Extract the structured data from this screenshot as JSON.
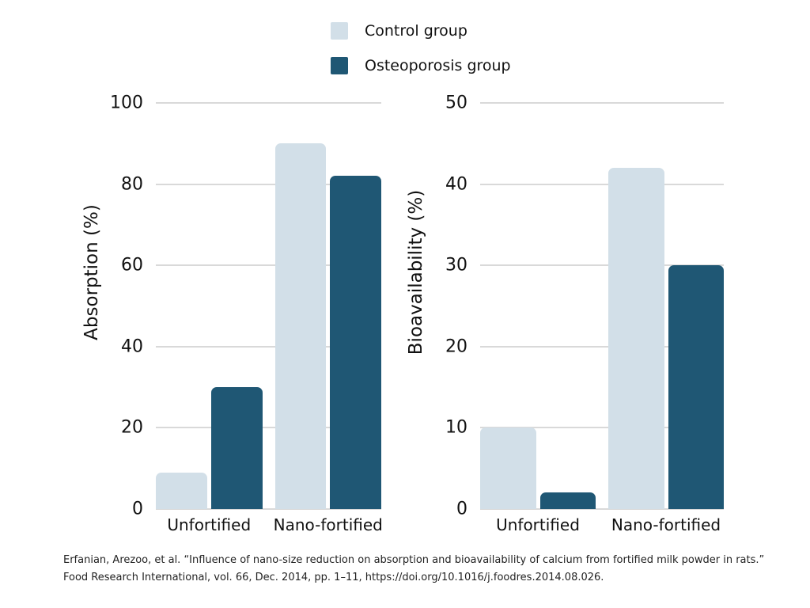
{
  "figure": {
    "legend": {
      "items": [
        {
          "label": "Control group",
          "color": "#d2dfe8"
        },
        {
          "label": "Osteoporosis group",
          "color": "#1f5774"
        }
      ]
    },
    "citation": {
      "line1": "Erfanian, Arezoo, et al. “Influence of nano-size reduction on absorption and bioavailability of calcium from fortified milk powder in rats.”",
      "line2": "Food Research International, vol. 66, Dec. 2014, pp. 1–11, https://doi.org/10.1016/j.foodres.2014.08.026."
    },
    "colors": {
      "control_fill": "#d2dfe8",
      "osteoporosis_fill": "#1f5774",
      "gridline": "#d9d9d9",
      "axis_text": "#111111",
      "background": "#ffffff"
    }
  },
  "chart_data": [
    {
      "type": "bar",
      "title": "",
      "ylabel": "Absorption (%)",
      "xlabel": "",
      "categories": [
        "Unfortified",
        "Nano-fortified"
      ],
      "series": [
        {
          "name": "Control group",
          "color": "#d2dfe8",
          "values": [
            9,
            90
          ]
        },
        {
          "name": "Osteoporosis group",
          "color": "#1f5774",
          "values": [
            30,
            82
          ]
        }
      ],
      "ylim": [
        0,
        100
      ],
      "yticks": [
        0,
        20,
        40,
        60,
        80,
        100
      ],
      "grid": true,
      "legend_position": "top-center"
    },
    {
      "type": "bar",
      "title": "",
      "ylabel": "Bioavailability (%)",
      "xlabel": "",
      "categories": [
        "Unfortified",
        "Nano-fortified"
      ],
      "series": [
        {
          "name": "Control group",
          "color": "#d2dfe8",
          "values": [
            10,
            42
          ]
        },
        {
          "name": "Osteoporosis group",
          "color": "#1f5774",
          "values": [
            2,
            30
          ]
        }
      ],
      "ylim": [
        0,
        50
      ],
      "yticks": [
        0,
        10,
        20,
        30,
        40,
        50
      ],
      "grid": true,
      "legend_position": "top-center"
    }
  ]
}
